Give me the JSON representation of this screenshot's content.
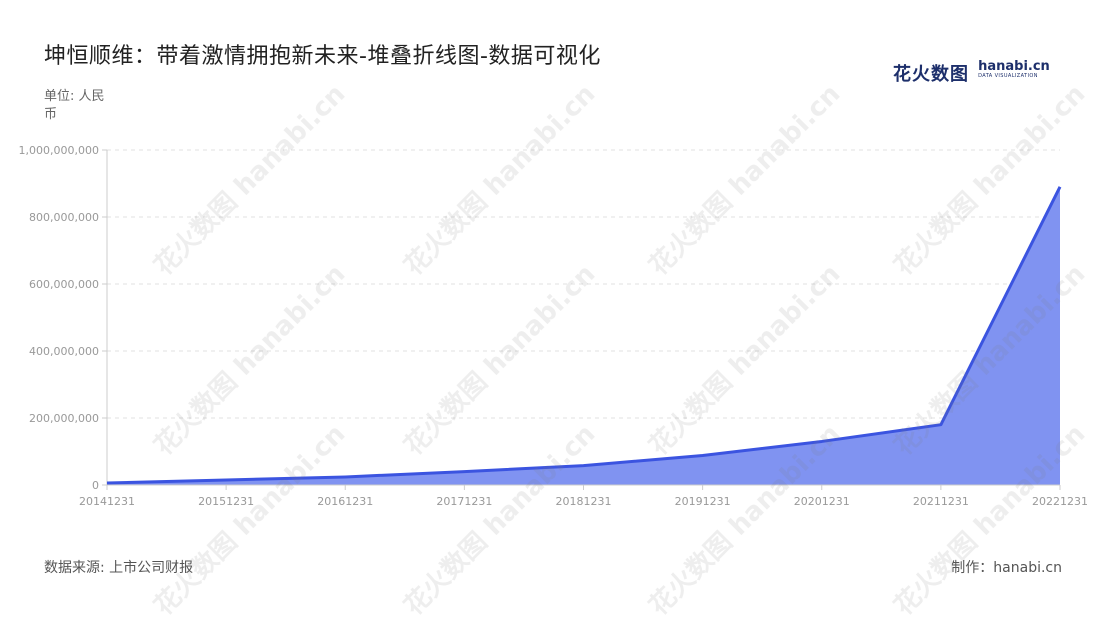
{
  "header": {
    "title": "坤恒顺维：带着激情拥抱新未来-堆叠折线图-数据可视化",
    "unit": "单位: 人民币"
  },
  "logo": {
    "cn": "花火数图",
    "en": "hanabi.cn",
    "en_sub": "DATA VISUALIZATION"
  },
  "footer": {
    "source": "数据来源: 上市公司财报",
    "credit": "制作：hanabi.cn"
  },
  "watermark": {
    "text": "花火数图 hanabi.cn"
  },
  "colors": {
    "line": "#3b54e0",
    "area": "#8093f1",
    "grid": "#e0e0e0",
    "axis": "#cccccc"
  },
  "chart_data": {
    "type": "area",
    "stacked": true,
    "categories": [
      "20141231",
      "20151231",
      "20161231",
      "20171231",
      "20181231",
      "20191231",
      "20201231",
      "20211231",
      "20221231"
    ],
    "series": [
      {
        "values": [
          6000000,
          15000000,
          24000000,
          40000000,
          58000000,
          88000000,
          130000000,
          180000000,
          890000000
        ]
      }
    ],
    "y_ticks": [
      "0",
      "200,000,000",
      "400,000,000",
      "600,000,000",
      "800,000,000",
      "1,000,000,000"
    ],
    "ylim": [
      0,
      1000000000
    ],
    "grid": "horizontal dashed",
    "legend": "none"
  }
}
